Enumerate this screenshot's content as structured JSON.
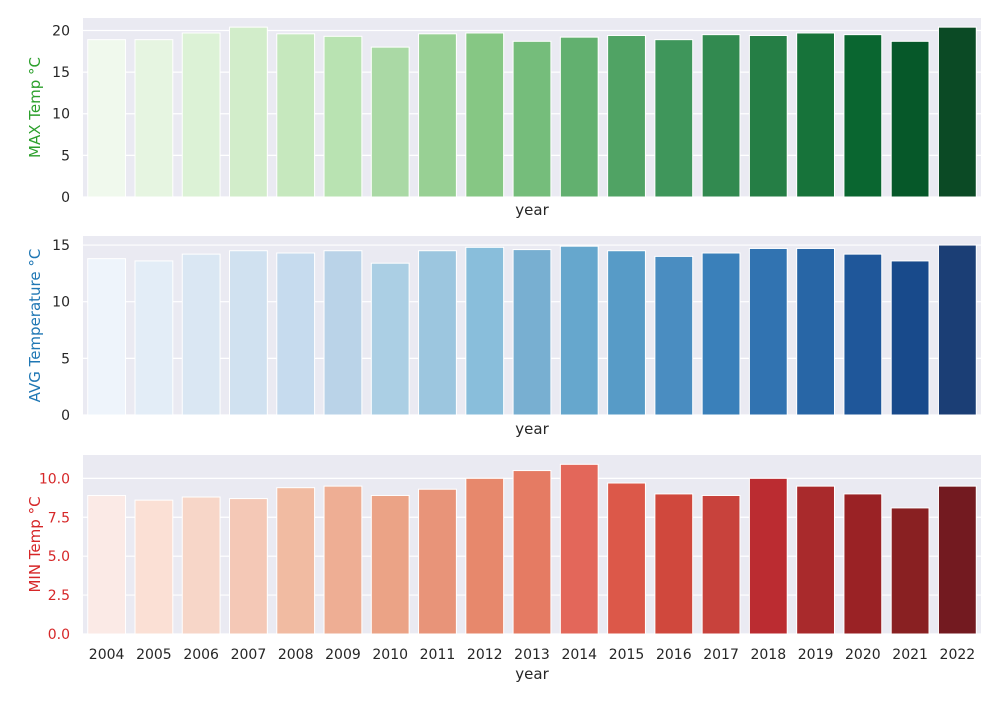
{
  "chart_data": [
    {
      "type": "bar",
      "xlabel": "year",
      "ylabel": "MAX Temp °C",
      "ylabel_color": "#2ca02c",
      "tick_color": "#262626",
      "ylim": [
        0,
        21.5
      ],
      "yticks": [
        0,
        5,
        10,
        15,
        20
      ],
      "ytick_labels": [
        "0",
        "5",
        "10",
        "15",
        "20"
      ],
      "show_xtick_labels": false,
      "palette": "Greens",
      "categories": [
        "2004",
        "2005",
        "2006",
        "2007",
        "2008",
        "2009",
        "2010",
        "2011",
        "2012",
        "2013",
        "2014",
        "2015",
        "2016",
        "2017",
        "2018",
        "2019",
        "2020",
        "2021",
        "2022"
      ],
      "values": [
        18.9,
        18.9,
        19.7,
        20.4,
        19.6,
        19.3,
        18.0,
        19.6,
        19.7,
        18.7,
        19.2,
        19.4,
        18.9,
        19.5,
        19.4,
        19.7,
        19.5,
        18.7,
        20.4
      ],
      "colors": [
        "#f0f9ed",
        "#e6f5e1",
        "#dcf2d6",
        "#d2edca",
        "#c6e8be",
        "#b9e3b2",
        "#aad9a5",
        "#98d094",
        "#86c784",
        "#75bd7b",
        "#62b06f",
        "#50a364",
        "#3f965b",
        "#328a50",
        "#257e45",
        "#17733a",
        "#0a6630",
        "#065829",
        "#0b4a25"
      ],
      "grid": true
    },
    {
      "type": "bar",
      "xlabel": "year",
      "ylabel": "AVG Temperature °C",
      "ylabel_color": "#1f77b4",
      "tick_color": "#262626",
      "ylim": [
        0,
        15.8
      ],
      "yticks": [
        0,
        5,
        10,
        15
      ],
      "ytick_labels": [
        "0",
        "5",
        "10",
        "15"
      ],
      "show_xtick_labels": false,
      "palette": "Blues",
      "categories": [
        "2004",
        "2005",
        "2006",
        "2007",
        "2008",
        "2009",
        "2010",
        "2011",
        "2012",
        "2013",
        "2014",
        "2015",
        "2016",
        "2017",
        "2018",
        "2019",
        "2020",
        "2021",
        "2022"
      ],
      "values": [
        13.8,
        13.6,
        14.2,
        14.5,
        14.3,
        14.5,
        13.4,
        14.5,
        14.8,
        14.6,
        14.9,
        14.5,
        14.0,
        14.3,
        14.7,
        14.7,
        14.2,
        13.6,
        15.0
      ],
      "colors": [
        "#eef4fb",
        "#e3edf7",
        "#dae7f3",
        "#d0e1f0",
        "#c6dbee",
        "#bad3e8",
        "#abcfe4",
        "#9cc6df",
        "#89bedb",
        "#78afd1",
        "#66a7cd",
        "#579bc7",
        "#4a8dc1",
        "#3a80ba",
        "#3173b1",
        "#2866a6",
        "#1f579a",
        "#184a8b",
        "#1b3e75"
      ],
      "grid": true
    },
    {
      "type": "bar",
      "xlabel": "year",
      "ylabel": "MIN Temp °C",
      "ylabel_color": "#d62728",
      "tick_color": "#d62728",
      "ylim": [
        0,
        11.5
      ],
      "yticks": [
        0,
        2.5,
        5,
        7.5,
        10
      ],
      "ytick_labels": [
        "0.0",
        "2.5",
        "5.0",
        "7.5",
        "10.0"
      ],
      "show_xtick_labels": true,
      "palette": "Reds",
      "categories": [
        "2004",
        "2005",
        "2006",
        "2007",
        "2008",
        "2009",
        "2010",
        "2011",
        "2012",
        "2013",
        "2014",
        "2015",
        "2016",
        "2017",
        "2018",
        "2019",
        "2020",
        "2021",
        "2022"
      ],
      "values": [
        8.9,
        8.6,
        8.8,
        8.7,
        9.4,
        9.5,
        8.9,
        9.3,
        10.0,
        10.5,
        10.9,
        9.7,
        9.0,
        8.9,
        10.0,
        9.5,
        9.0,
        8.1,
        9.5
      ],
      "colors": [
        "#fbeae6",
        "#fbe0d5",
        "#f7d6c8",
        "#f4c8b6",
        "#f1bba2",
        "#eeae94",
        "#eba386",
        "#e89479",
        "#e7886c",
        "#e57b63",
        "#e3675a",
        "#dc5849",
        "#d0483d",
        "#c8423c",
        "#bb2c31",
        "#a92a2c",
        "#9a2225",
        "#892022",
        "#731a20"
      ],
      "grid": true
    }
  ]
}
